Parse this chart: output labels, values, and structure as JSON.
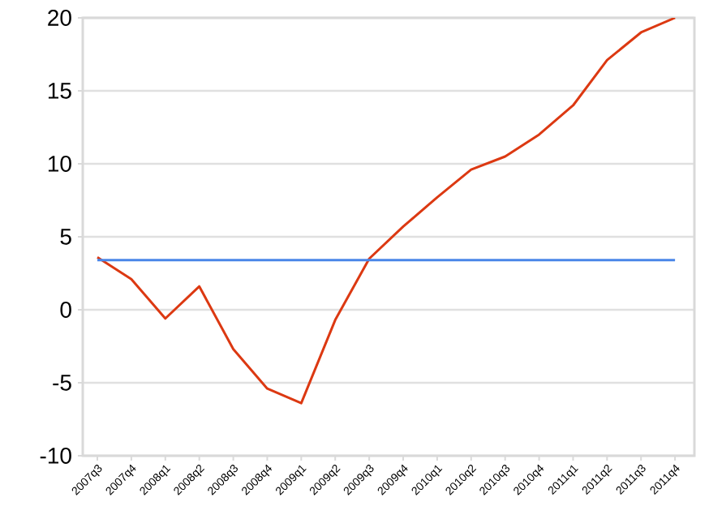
{
  "chart_data": {
    "type": "line",
    "categories": [
      "2007q3",
      "2007q4",
      "2008q1",
      "2008q2",
      "2008q3",
      "2008q4",
      "2009q1",
      "2009q2",
      "2009q3",
      "2009q4",
      "2010q1",
      "2010q2",
      "2010q3",
      "2010q4",
      "2011q1",
      "2011q2",
      "2011q3",
      "2011q4"
    ],
    "series": [
      {
        "color": "#dc3912",
        "values": [
          3.6,
          2.1,
          -0.6,
          1.6,
          -2.7,
          -5.4,
          -6.4,
          -0.7,
          3.5,
          5.7,
          7.7,
          9.6,
          10.5,
          12.0,
          14.0,
          17.1,
          19.0,
          20.0
        ]
      },
      {
        "color": "#4a86e8",
        "values": [
          3.4,
          3.4,
          3.4,
          3.4,
          3.4,
          3.4,
          3.4,
          3.4,
          3.4,
          3.4,
          3.4,
          3.4,
          3.4,
          3.4,
          3.4,
          3.4,
          3.4,
          3.4
        ]
      }
    ],
    "ylim": [
      -10,
      20
    ],
    "yticks": [
      -10,
      -5,
      0,
      5,
      10,
      15,
      20
    ],
    "grid": "y",
    "marker": "none",
    "line_style": "solid"
  }
}
